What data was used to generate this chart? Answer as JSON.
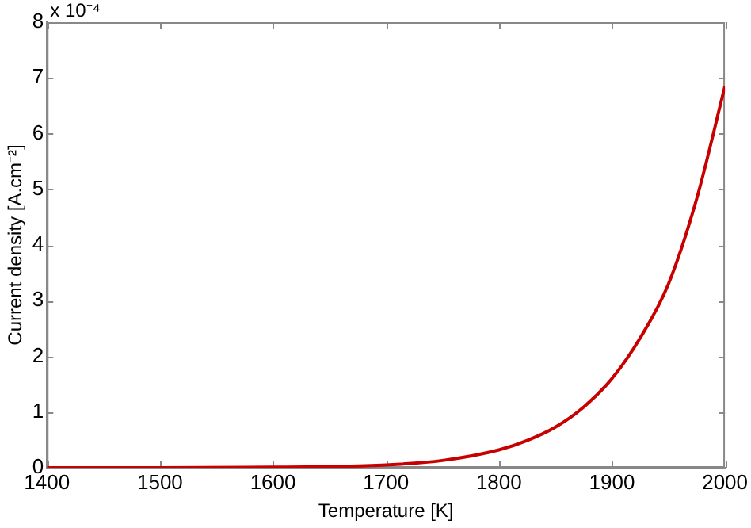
{
  "chart_data": {
    "type": "line",
    "xlabel": "Temperature [K]",
    "ylabel": "Current density [A.cm⁻²]",
    "annotations": [
      "x 10⁻⁴"
    ],
    "x": [
      1400,
      1500,
      1600,
      1650,
      1700,
      1750,
      1800,
      1825,
      1850,
      1875,
      1900,
      1925,
      1950,
      1975,
      2000
    ],
    "series": [
      {
        "color": "#c80000",
        "values": [
          0,
          0,
          0.01,
          0.02,
          0.05,
          0.13,
          0.32,
          0.49,
          0.73,
          1.09,
          1.6,
          2.33,
          3.3,
          4.83,
          6.85
        ]
      }
    ],
    "xlim": [
      1400,
      2000
    ],
    "xticks": [
      1400,
      1500,
      1600,
      1700,
      1800,
      1900,
      2000
    ],
    "ylim": [
      0,
      8
    ],
    "yticks": [
      0,
      1,
      2,
      3,
      4,
      5,
      6,
      7,
      8
    ],
    "grid": false,
    "legend": false,
    "marker": "none",
    "line_style": "solid"
  }
}
